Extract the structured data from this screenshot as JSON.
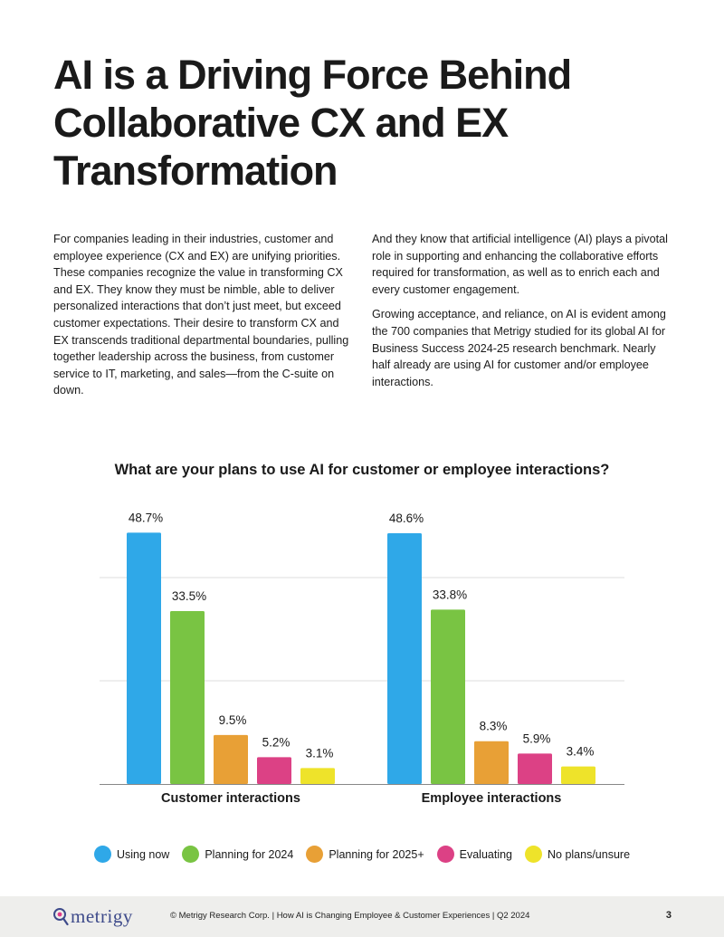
{
  "title": "AI is a Driving Force Behind Collaborative CX and EX Transformation",
  "body": {
    "left_paragraph": "For companies leading in their industries, customer and employee experience (CX and EX) are unifying priorities. These companies recognize the value in transforming CX and EX. They know they must be nimble, able to deliver personalized interactions that don’t just meet, but exceed customer expectations. Their desire to transform CX and EX transcends traditional departmental boundaries, pulling together leadership across the business, from customer service to IT, marketing, and sales—from the C-suite on down.",
    "right_paragraph_1": "And they know that artificial intelligence (AI) plays a pivotal role in supporting and enhancing the collaborative efforts required for transformation, as well as to enrich each and every customer engagement.",
    "right_paragraph_2": "Growing acceptance, and reliance, on AI is evident among the 700 companies that Metrigy studied for its global AI for Business Success 2024-25 research benchmark. Nearly half already are using AI for customer and/or employee interactions."
  },
  "chart_data": {
    "type": "bar",
    "title": "What are your plans to use AI for customer or employee interactions?",
    "categories": [
      "Customer interactions",
      "Employee interactions"
    ],
    "unit": "%",
    "series": [
      {
        "name": "Using now",
        "color": "#2fa8e8",
        "values": [
          48.7,
          48.6
        ],
        "labels": [
          "48.7%",
          "48.6%"
        ]
      },
      {
        "name": "Planning for 2024",
        "color": "#79c443",
        "values": [
          33.5,
          33.8
        ],
        "labels": [
          "33.5%",
          "33.8%"
        ]
      },
      {
        "name": "Planning for 2025+",
        "color": "#e8a036",
        "values": [
          9.5,
          8.3
        ],
        "labels": [
          "9.5%",
          "8.3%"
        ]
      },
      {
        "name": "Evaluating",
        "color": "#dc4185",
        "values": [
          5.2,
          5.9
        ],
        "labels": [
          "5.2%",
          "5.9%"
        ]
      },
      {
        "name": "No plans/unsure",
        "color": "#eee32a",
        "values": [
          3.1,
          3.4
        ],
        "labels": [
          "3.1%",
          "3.4%"
        ]
      }
    ],
    "ylim": [
      0,
      50
    ],
    "grid": true,
    "legend_position": "bottom"
  },
  "footer": {
    "logo_text": "metrigy",
    "text": "© Metrigy Research Corp.  |  How AI is Changing Employee & Customer Experiences  |  Q2 2024",
    "page_number": "3",
    "brand_color": "#3d4a8a"
  }
}
